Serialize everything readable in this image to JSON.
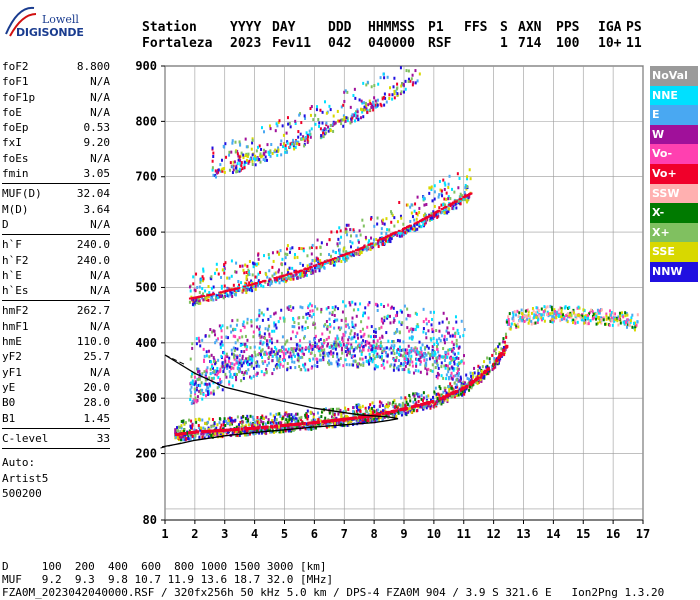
{
  "logo": {
    "line1": "Lowell",
    "line2": "DIGISONDE"
  },
  "header": {
    "labels": [
      "Station",
      "YYYY",
      "DAY",
      "DDD",
      "HHMMSS",
      "P1",
      "FFS",
      "S",
      "AXN",
      "PPS",
      "IGA",
      "PS"
    ],
    "values": [
      "Fortaleza",
      "2023",
      "Fev11",
      "042",
      "040000",
      "RSF",
      "1",
      "714",
      "100",
      "10+",
      "11"
    ]
  },
  "params": [
    [
      {
        "k": "foF2",
        "v": "8.800"
      },
      {
        "k": "foF1",
        "v": "N/A"
      },
      {
        "k": "foF1p",
        "v": "N/A"
      },
      {
        "k": "foE",
        "v": "N/A"
      },
      {
        "k": "foEp",
        "v": "0.53"
      },
      {
        "k": "fxI",
        "v": "9.20"
      },
      {
        "k": "foEs",
        "v": "N/A"
      },
      {
        "k": "fmin",
        "v": "3.05"
      }
    ],
    [
      {
        "k": "MUF(D)",
        "v": "32.04"
      },
      {
        "k": "M(D)",
        "v": "3.64"
      },
      {
        "k": "D",
        "v": "N/A"
      }
    ],
    [
      {
        "k": "h`F",
        "v": "240.0"
      },
      {
        "k": "h`F2",
        "v": "240.0"
      },
      {
        "k": "h`E",
        "v": "N/A"
      },
      {
        "k": "h`Es",
        "v": "N/A"
      }
    ],
    [
      {
        "k": "hmF2",
        "v": "262.7"
      },
      {
        "k": "hmF1",
        "v": "N/A"
      },
      {
        "k": "hmE",
        "v": "110.0"
      },
      {
        "k": "yF2",
        "v": "25.7"
      },
      {
        "k": "yF1",
        "v": "N/A"
      },
      {
        "k": "yE",
        "v": "20.0"
      },
      {
        "k": "B0",
        "v": "28.0"
      },
      {
        "k": "B1",
        "v": "1.45"
      }
    ],
    [
      {
        "k": "C-level",
        "v": "33"
      }
    ]
  ],
  "auto": [
    "Auto:",
    "Artist5",
    "500200"
  ],
  "legend": [
    {
      "label": "NoVal",
      "color": "#9a9a9a"
    },
    {
      "label": "NNE",
      "color": "#00e0ff"
    },
    {
      "label": "E",
      "color": "#49a8f2"
    },
    {
      "label": "W",
      "color": "#a0109a"
    },
    {
      "label": "Vo-",
      "color": "#ff40b0"
    },
    {
      "label": "Vo+",
      "color": "#f0002a"
    },
    {
      "label": "SSW",
      "color": "#ffb0b0"
    },
    {
      "label": "X-",
      "color": "#007a00"
    },
    {
      "label": "X+",
      "color": "#80c060"
    },
    {
      "label": "SSE",
      "color": "#d8d800"
    },
    {
      "label": "NNW",
      "color": "#2010e0"
    }
  ],
  "bottom": {
    "d_line": "D     100  200  400  600  800 1000 1500 3000 [km]",
    "muf_line": "MUF   9.2  9.3  9.8 10.7 11.9 13.6 18.7 32.0 [MHz]",
    "file_line": "FZA0M_2023042040000.RSF / 320fx256h 50 kHz 5.0 km / DPS-4 FZA0M 904 / 3.9 S 321.6 E   Ion2Png 1.3.20"
  },
  "chart_data": {
    "type": "scatter",
    "xlim": [
      1,
      17
    ],
    "ylim": [
      80,
      900
    ],
    "x_ticks": [
      "1",
      "2",
      "3",
      "4",
      "5",
      "6",
      "7",
      "8",
      "9",
      "10",
      "11",
      "12",
      "13",
      "14",
      "15",
      "16",
      "17"
    ],
    "y_ticks": [
      {
        "value": 80,
        "label": "80"
      },
      {
        "value": 200,
        "label": "200"
      },
      {
        "value": 300,
        "label": "300"
      },
      {
        "value": 400,
        "label": "400"
      },
      {
        "value": 500,
        "label": "500"
      },
      {
        "value": 600,
        "label": "600"
      },
      {
        "value": 700,
        "label": "700"
      },
      {
        "value": 800,
        "label": "800"
      },
      {
        "value": 900,
        "label": "900"
      }
    ],
    "grid": true,
    "traces": [
      {
        "name": "first hop",
        "x": [
          1.3,
          2.0,
          3.0,
          4.0,
          5.0,
          6.0,
          7.0,
          8.0,
          9.0,
          10.0,
          11.0,
          11.5,
          12.0,
          12.4
        ],
        "y": [
          235,
          240,
          243,
          247,
          252,
          257,
          263,
          270,
          282,
          296,
          320,
          340,
          365,
          395
        ]
      },
      {
        "name": "second hop",
        "x": [
          1.8,
          2.5,
          3.5,
          4.5,
          5.5,
          6.5,
          7.5,
          8.5,
          9.5,
          10.5,
          11.2
        ],
        "y": [
          480,
          487,
          500,
          515,
          530,
          550,
          570,
          595,
          620,
          650,
          670
        ]
      },
      {
        "name": "third hop",
        "x": [
          2.5,
          3.5,
          4.5,
          5.5,
          6.5,
          7.5,
          8.5,
          9.5
        ],
        "y": [
          710,
          728,
          748,
          770,
          795,
          822,
          852,
          890
        ]
      },
      {
        "name": "spread F",
        "x": [
          1.8,
          3.0,
          4.0,
          5.0,
          6.0,
          7.0,
          8.0,
          9.0,
          10.0,
          11.0
        ],
        "y": [
          330,
          360,
          380,
          390,
          395,
          400,
          395,
          390,
          380,
          370
        ]
      },
      {
        "name": "far spread",
        "x": [
          12.4,
          13.0,
          14.0,
          15.0,
          16.0,
          16.8
        ],
        "y": [
          440,
          450,
          455,
          452,
          445,
          440
        ]
      }
    ],
    "profile": {
      "x": [
        0.9,
        1.5,
        2.0,
        3.0,
        4.0,
        5.0,
        6.0,
        7.0,
        8.0,
        8.5,
        8.8,
        8.5,
        7.5,
        6.0,
        4.5,
        3.0,
        2.0,
        1.0
      ],
      "y": [
        212,
        218,
        224,
        232,
        238,
        243,
        248,
        252,
        256,
        260,
        263,
        266,
        270,
        282,
        300,
        320,
        345,
        378
      ]
    }
  }
}
